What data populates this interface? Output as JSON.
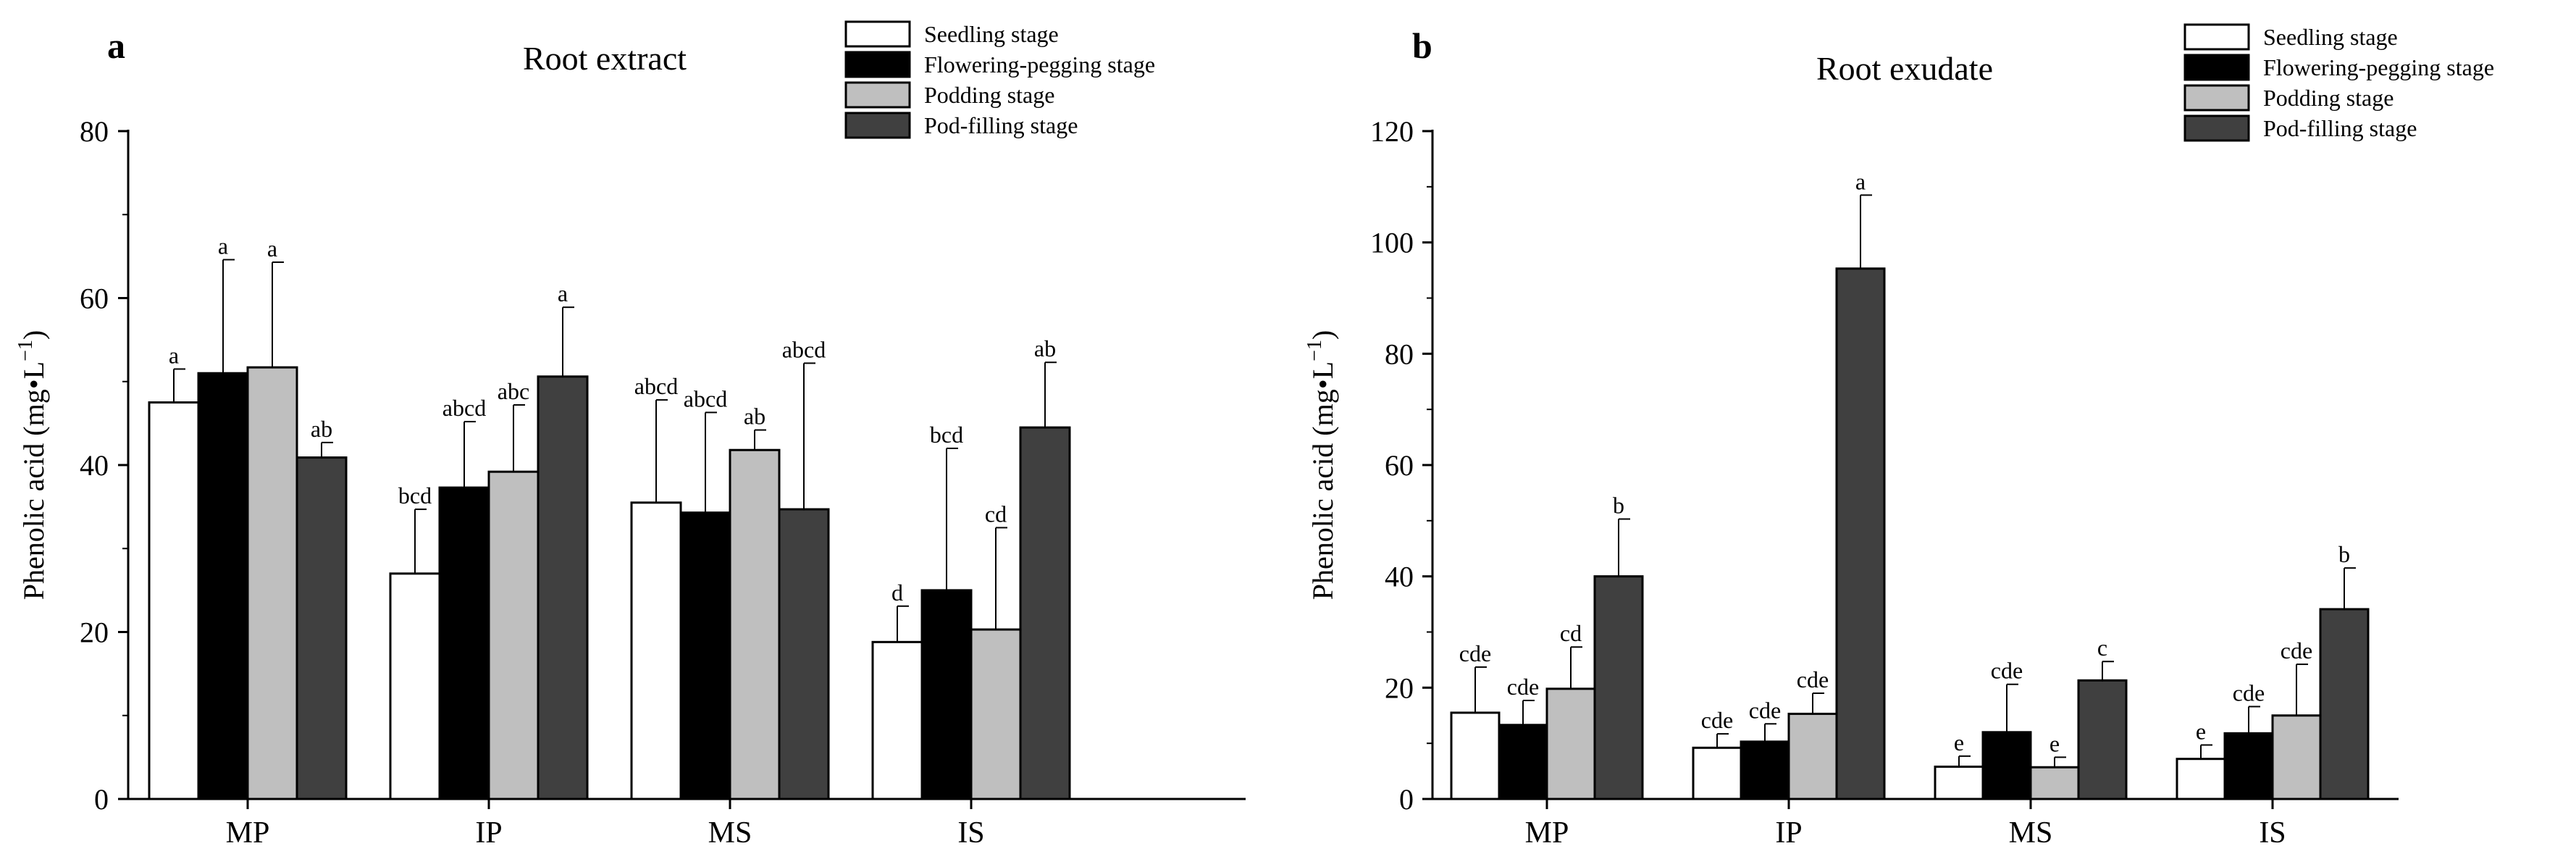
{
  "chart_data": [
    {
      "type": "bar",
      "panel_label": "a",
      "title": "Root extract",
      "ylabel": "Phenolic acid (mg•L",
      "ylabel_sup": "−1",
      "ylabel_close": ")",
      "xlabel": "",
      "ylim": [
        0,
        80
      ],
      "yticks": [
        0,
        20,
        40,
        60,
        80
      ],
      "categories": [
        "MP",
        "IP",
        "MS",
        "IS"
      ],
      "legend_position": "top-right",
      "series": [
        {
          "name": "Seedling stage",
          "color": "#ffffff",
          "values": [
            47.5,
            27.0,
            35.5,
            18.8
          ],
          "errors": [
            4.0,
            7.7,
            12.3,
            4.3
          ],
          "labels": [
            "a",
            "bcd",
            "abcd",
            "d"
          ]
        },
        {
          "name": "Flowering-pegging stage",
          "color": "#000000",
          "values": [
            51.0,
            37.3,
            34.3,
            25.0
          ],
          "errors": [
            13.6,
            7.9,
            12.0,
            17.0
          ],
          "labels": [
            "a",
            "abcd",
            "abcd",
            "bcd"
          ]
        },
        {
          "name": "Podding stage",
          "color": "#bfbfbf",
          "values": [
            51.7,
            39.2,
            41.8,
            20.3
          ],
          "errors": [
            12.6,
            8.0,
            2.4,
            12.2
          ],
          "labels": [
            "a",
            "abc",
            "ab",
            "cd"
          ]
        },
        {
          "name": "Pod-filling stage",
          "color": "#404040",
          "values": [
            40.9,
            50.6,
            34.7,
            44.5
          ],
          "errors": [
            1.8,
            8.3,
            17.5,
            7.8
          ],
          "labels": [
            "ab",
            "a",
            "abcd",
            "ab"
          ]
        }
      ]
    },
    {
      "type": "bar",
      "panel_label": "b",
      "title": "Root exudate",
      "ylabel": "Phenolic acid (mg•L",
      "ylabel_sup": "−1",
      "ylabel_close": ")",
      "xlabel": "",
      "ylim": [
        0,
        120
      ],
      "yticks": [
        0,
        20,
        40,
        60,
        80,
        100,
        120
      ],
      "categories": [
        "MP",
        "IP",
        "MS",
        "IS"
      ],
      "legend_position": "top-right",
      "series": [
        {
          "name": "Seedling stage",
          "color": "#ffffff",
          "values": [
            15.5,
            9.2,
            5.8,
            7.2
          ],
          "errors": [
            8.2,
            2.5,
            1.9,
            2.5
          ],
          "labels": [
            "cde",
            "cde",
            "e",
            "e"
          ]
        },
        {
          "name": "Flowering-pegging stage",
          "color": "#000000",
          "values": [
            13.3,
            10.3,
            12.0,
            11.8
          ],
          "errors": [
            4.4,
            3.2,
            8.6,
            4.8
          ],
          "labels": [
            "cde",
            "cde",
            "cde",
            "cde"
          ]
        },
        {
          "name": "Podding stage",
          "color": "#bfbfbf",
          "values": [
            19.8,
            15.3,
            5.7,
            15.0
          ],
          "errors": [
            7.5,
            3.7,
            1.8,
            9.2
          ],
          "labels": [
            "cd",
            "cde",
            "e",
            "cde"
          ]
        },
        {
          "name": "Pod-filling stage",
          "color": "#404040",
          "values": [
            40.0,
            95.3,
            21.3,
            34.1
          ],
          "errors": [
            10.3,
            13.2,
            3.4,
            7.4
          ],
          "labels": [
            "b",
            "a",
            "c",
            "b"
          ]
        }
      ]
    }
  ]
}
